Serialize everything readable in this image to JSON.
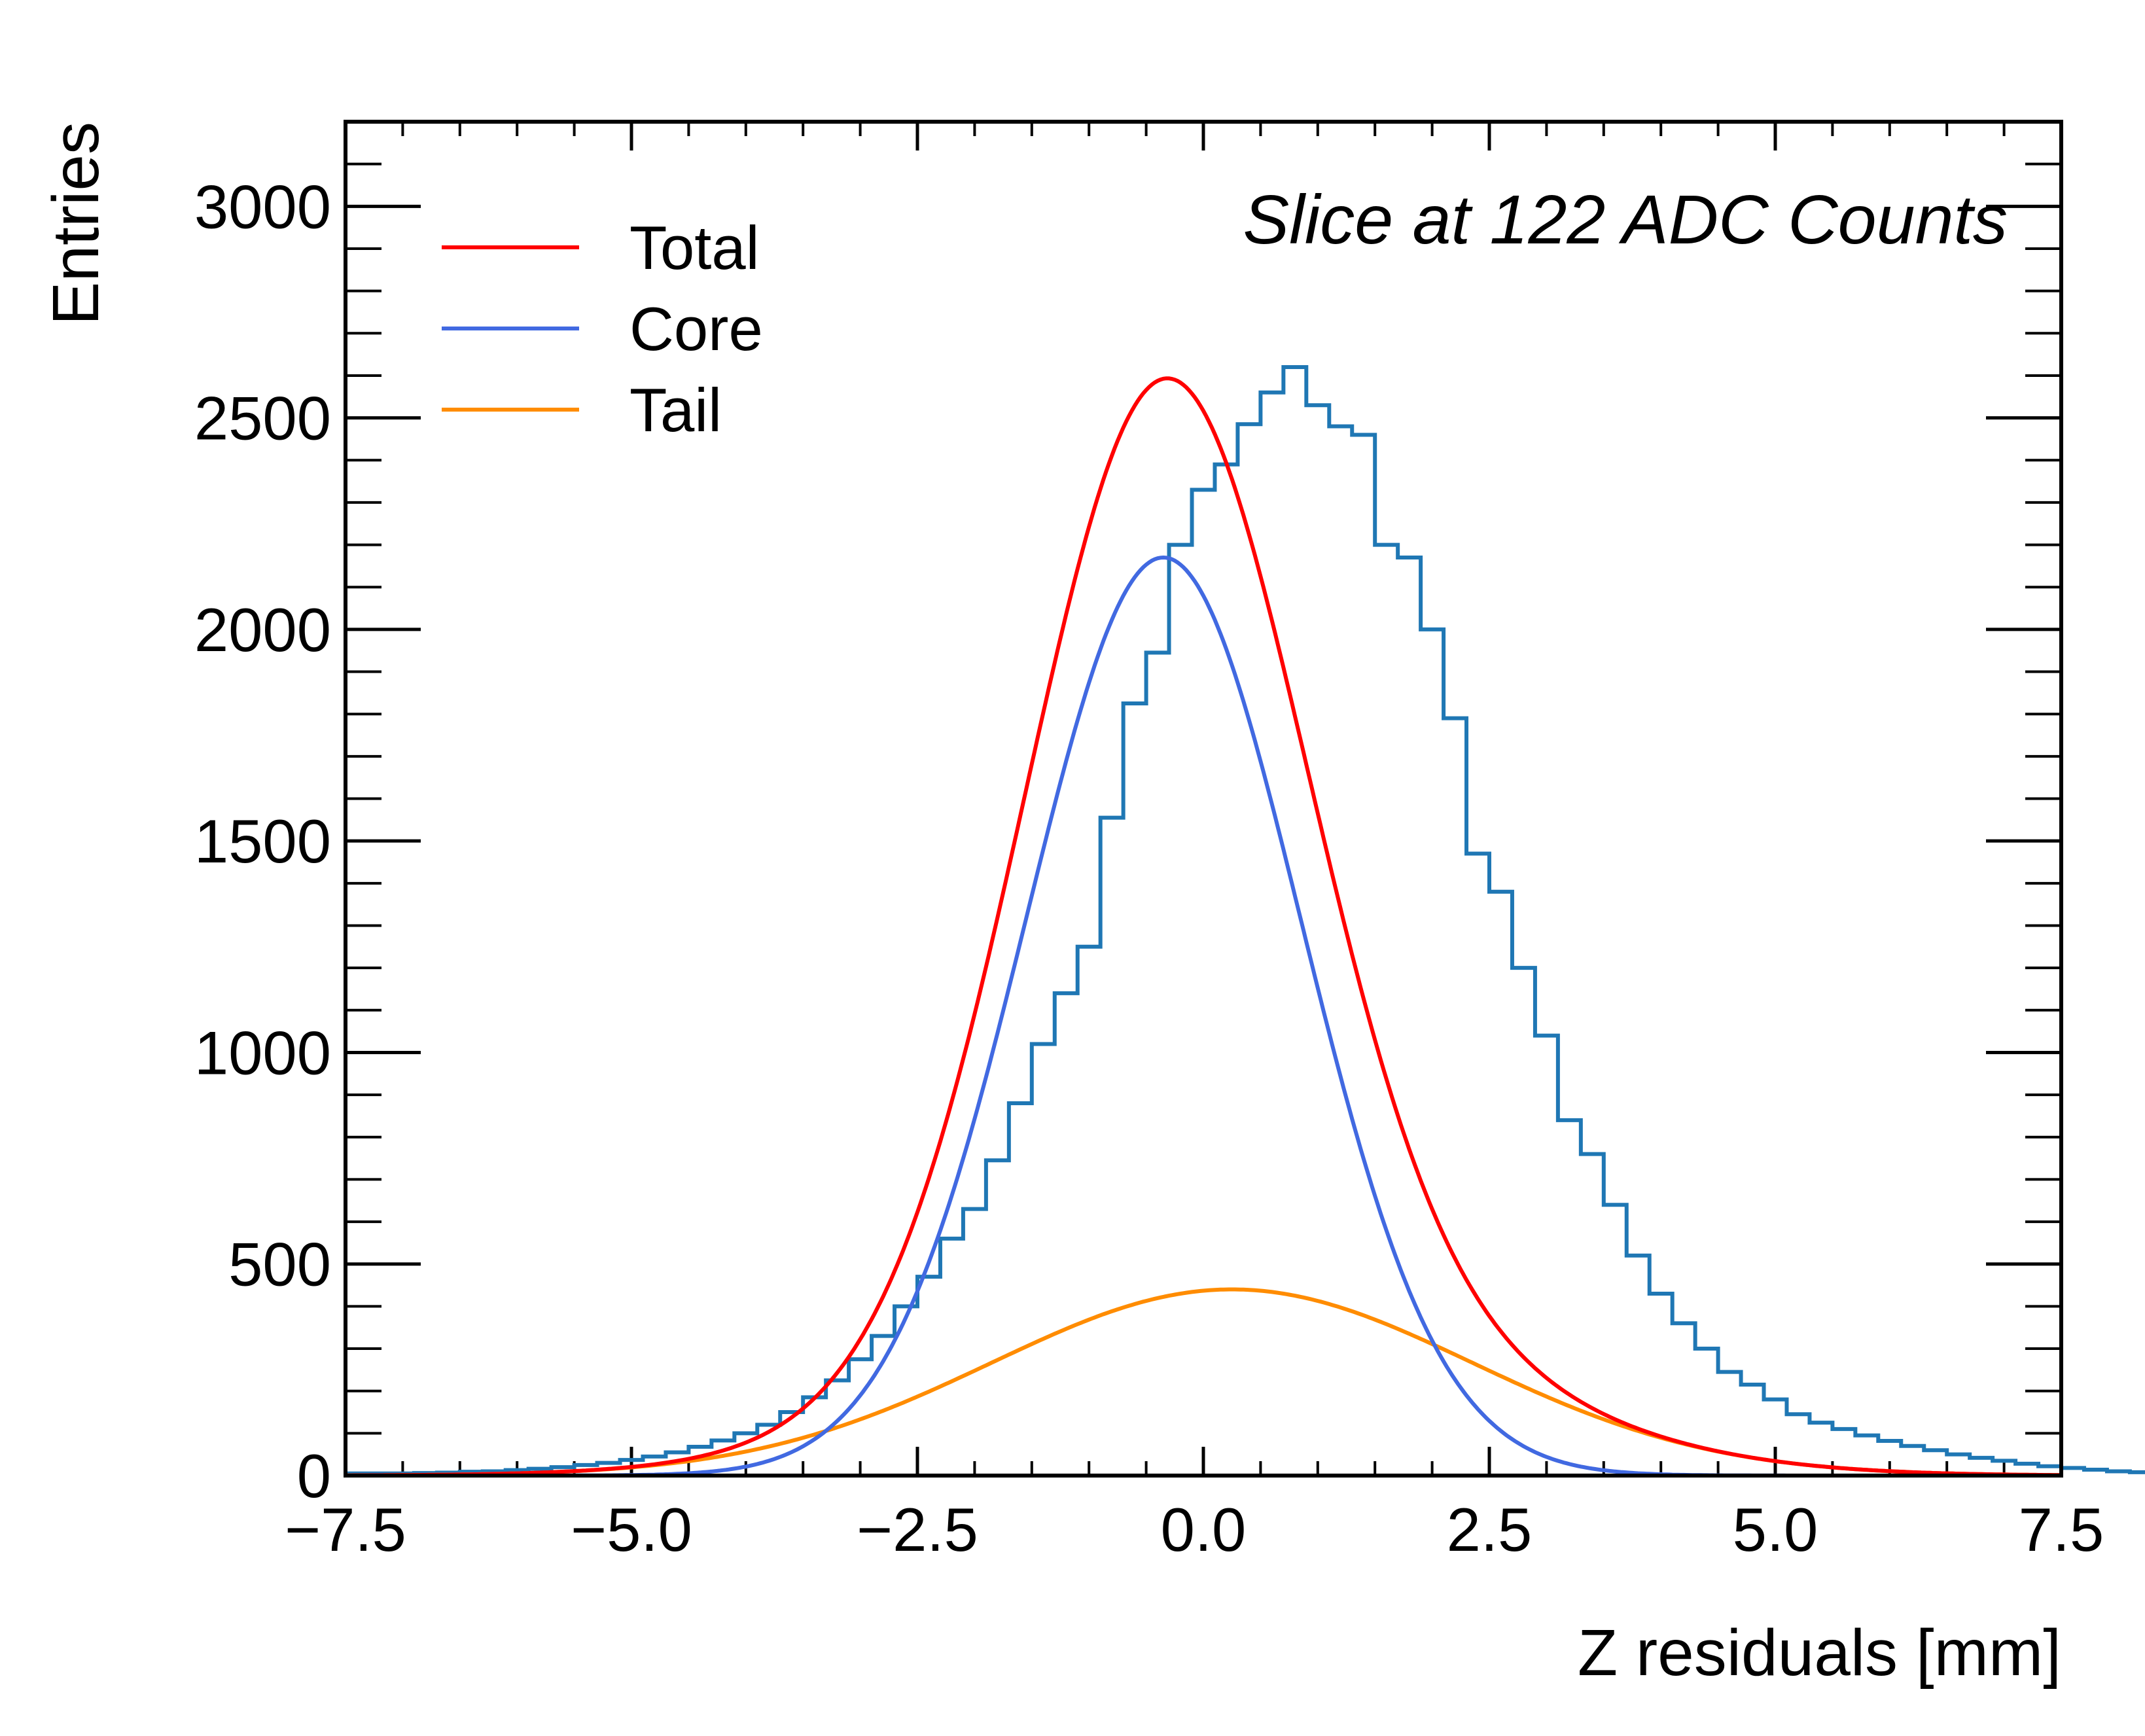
{
  "chart_data": {
    "type": "histogram",
    "xlabel": "Z residuals [mm]",
    "ylabel": "Entries",
    "annotation": "Slice at 122 ADC Counts",
    "xlim": [
      -7.5,
      7.5
    ],
    "ylim": [
      0,
      3200
    ],
    "x_ticks": [
      -7.5,
      -5.0,
      -2.5,
      0.0,
      2.5,
      5.0,
      7.5
    ],
    "x_tick_labels": [
      "−7.5",
      "−5.0",
      "−2.5",
      "0.0",
      "2.5",
      "5.0",
      "7.5"
    ],
    "y_ticks": [
      0,
      500,
      1000,
      1500,
      2000,
      2500,
      3000
    ],
    "y_tick_labels": [
      "0",
      "500",
      "1000",
      "1500",
      "2000",
      "2500",
      "3000"
    ],
    "legend": {
      "position": "top-left",
      "entries": [
        "Total",
        "Core",
        "Tail"
      ]
    },
    "histogram": {
      "color": "#1f77b4",
      "bin_edges_start": -7.5,
      "bin_width": 0.2,
      "counts": [
        5,
        5,
        5,
        6,
        7,
        9,
        10,
        13,
        16,
        20,
        25,
        30,
        37,
        45,
        55,
        68,
        83,
        100,
        120,
        150,
        185,
        225,
        275,
        330,
        400,
        470,
        560,
        630,
        745,
        880,
        1020,
        1140,
        1250,
        1555,
        1825,
        1945,
        2200,
        2330,
        2390,
        2485,
        2560,
        2620,
        2530,
        2480,
        2460,
        2200,
        2170,
        2000,
        1790,
        1470,
        1380,
        1200,
        1040,
        840,
        760,
        640,
        520,
        430,
        360,
        300,
        245,
        215,
        180,
        145,
        125,
        110,
        95,
        82,
        70,
        60,
        50,
        42,
        35,
        28,
        22,
        18,
        14,
        10,
        8,
        6,
        4,
        3,
        3,
        2,
        2
      ]
    },
    "series": [
      {
        "name": "Total",
        "color": "#ff0000",
        "components": [
          "Core",
          "Tail"
        ]
      },
      {
        "name": "Core",
        "color": "#4169e1",
        "amplitude": 2170,
        "mean": -0.35,
        "sigma": 1.2
      },
      {
        "name": "Tail",
        "color": "#ff8c00",
        "amplitude": 440,
        "mean": 0.25,
        "sigma": 2.1
      }
    ]
  }
}
